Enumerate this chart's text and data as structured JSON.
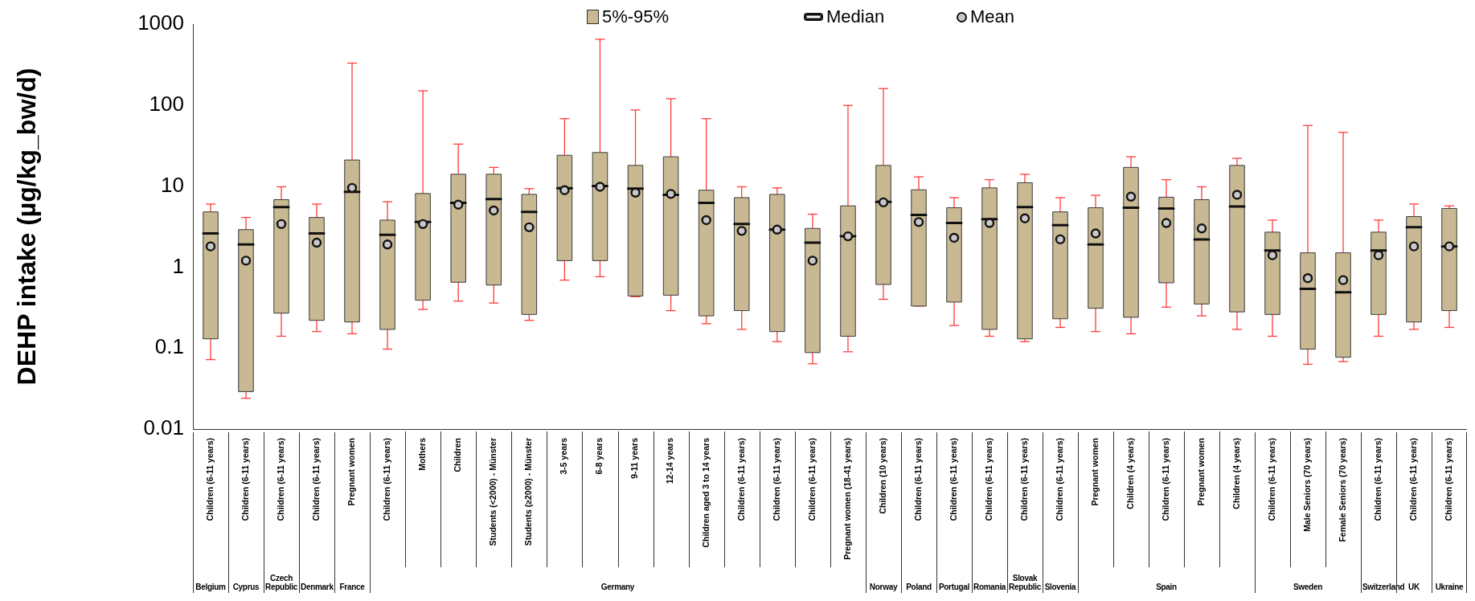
{
  "chart_data": [
    {
      "type": "box",
      "title": "Belgium",
      "ylabel": "DEHP intake (µg/kg_bw/d)",
      "color": "#c8b993",
      "log": true,
      "ylim": [
        0.01,
        1000
      ],
      "yticks": [
        0.01,
        0.1,
        1,
        10,
        100,
        1000
      ],
      "categories": [
        "Children (6-11 years)"
      ],
      "boxes": [
        {
          "low": 0.072,
          "q1": 0.13,
          "median": 2.6,
          "q3": 4.8,
          "high": 6.0,
          "mean": 1.8
        }
      ]
    },
    {
      "type": "box",
      "title": "Cyprus",
      "color": "#c8b993",
      "log": true,
      "ylim": [
        0.01,
        1000
      ],
      "yticks": [
        0.01,
        0.1,
        1,
        10,
        100,
        1000
      ],
      "tick_labels": "x",
      "categories": [
        "Children (6-11 years)"
      ],
      "boxes": [
        {
          "low": 0.024,
          "q1": 0.029,
          "median": 1.9,
          "q3": 2.9,
          "high": 4.1,
          "mean": 1.2
        }
      ]
    },
    {
      "type": "box",
      "title": "Czech Republic",
      "color": "#c8b993",
      "log": true,
      "ylim": [
        0.01,
        1000
      ],
      "yticks": [
        0.01,
        0.1,
        1,
        10,
        100,
        1000
      ],
      "tick_labels": "x",
      "categories": [
        "Children (6-11 years)"
      ],
      "boxes": [
        {
          "low": 0.14,
          "q1": 0.27,
          "median": 5.5,
          "q3": 6.8,
          "high": 9.8,
          "mean": 3.4
        }
      ]
    },
    {
      "type": "box",
      "title": "Denmark",
      "color": "#c8b993",
      "log": true,
      "ylim": [
        0.01,
        1000
      ],
      "yticks": [
        0.01,
        0.1,
        1,
        10,
        100,
        1000
      ],
      "tick_labels": "x",
      "categories": [
        "Children (6-11 years)"
      ],
      "boxes": [
        {
          "low": 0.16,
          "q1": 0.22,
          "median": 2.6,
          "q3": 4.1,
          "high": 6.0,
          "mean": 2.0
        }
      ]
    },
    {
      "type": "box",
      "title": "France",
      "color": "#c8b993",
      "log": true,
      "ylim": [
        0.01,
        1000
      ],
      "yticks": [
        0.01,
        0.1,
        1,
        10,
        100,
        1000
      ],
      "tick_labels": "x",
      "categories": [
        "Pregnant women"
      ],
      "boxes": [
        {
          "low": 0.15,
          "q1": 0.21,
          "median": 8.5,
          "q3": 21,
          "high": 330,
          "mean": 9.5
        }
      ]
    },
    {
      "type": "box",
      "title": "Germany",
      "color": "#c8b993",
      "log": true,
      "ylim": [
        0.01,
        1000
      ],
      "yticks": [
        0.01,
        0.1,
        1,
        10,
        100,
        1000
      ],
      "tick_labels": "x",
      "annotations": [
        "5%-95%",
        "Median",
        "Mean"
      ],
      "categories": [
        "Children (6-11 years)",
        "Mothers",
        "Children",
        "Students (<2000) - Münster",
        "Students (≥2000) - Münster",
        "3-5 years",
        "6-8 years",
        "9-11 years",
        "12-14 years",
        "Children aged 3 to 14 years",
        "Children (6-11 years)",
        "Children (6-11 years)",
        "Children (6-11 years)",
        "Pregnant women (18-41 years)"
      ],
      "boxes": [
        {
          "low": 0.097,
          "q1": 0.17,
          "median": 2.5,
          "q3": 3.8,
          "high": 6.4,
          "mean": 1.9
        },
        {
          "low": 0.3,
          "q1": 0.39,
          "median": 3.6,
          "q3": 8.1,
          "high": 150,
          "mean": 3.4
        },
        {
          "low": 0.38,
          "q1": 0.65,
          "median": 6.2,
          "q3": 14,
          "high": 33,
          "mean": 5.9
        },
        {
          "low": 0.36,
          "q1": 0.6,
          "median": 6.9,
          "q3": 14,
          "high": 17,
          "mean": 5.0
        },
        {
          "low": 0.22,
          "q1": 0.26,
          "median": 4.8,
          "q3": 7.9,
          "high": 9.3,
          "mean": 3.1
        },
        {
          "low": 0.69,
          "q1": 1.2,
          "median": 9.4,
          "q3": 24,
          "high": 68,
          "mean": 8.9
        },
        {
          "low": 0.76,
          "q1": 1.2,
          "median": 10,
          "q3": 26,
          "high": 650,
          "mean": 9.8
        },
        {
          "low": 0.43,
          "q1": 0.44,
          "median": 9.3,
          "q3": 18,
          "high": 87,
          "mean": 8.3
        },
        {
          "low": 0.29,
          "q1": 0.45,
          "median": 7.8,
          "q3": 23,
          "high": 120,
          "mean": 8.0
        },
        {
          "low": 0.2,
          "q1": 0.25,
          "median": 6.2,
          "q3": 8.9,
          "high": 68,
          "mean": 3.8
        },
        {
          "low": 0.17,
          "q1": 0.29,
          "median": 3.4,
          "q3": 7.2,
          "high": 9.8,
          "mean": 2.8
        },
        {
          "low": 0.12,
          "q1": 0.16,
          "median": 2.9,
          "q3": 7.9,
          "high": 9.5,
          "mean": 2.9
        },
        {
          "low": 0.064,
          "q1": 0.088,
          "median": 2.0,
          "q3": 3.0,
          "high": 4.5,
          "mean": 1.2
        },
        {
          "low": 0.09,
          "q1": 0.14,
          "median": 2.4,
          "q3": 5.7,
          "high": 99,
          "mean": 2.4
        }
      ]
    },
    {
      "type": "box",
      "title": "Norway",
      "color": "#c8b993",
      "log": true,
      "ylim": [
        0.01,
        1000
      ],
      "yticks": [
        0.01,
        0.1,
        1,
        10,
        100,
        1000
      ],
      "tick_labels": "x",
      "categories": [
        "Children (10 years)"
      ],
      "boxes": [
        {
          "low": 0.4,
          "q1": 0.61,
          "median": 6.4,
          "q3": 18,
          "high": 160,
          "mean": 6.3
        }
      ]
    },
    {
      "type": "box",
      "title": "Poland",
      "color": "#c8b993",
      "log": true,
      "ylim": [
        0.01,
        1000
      ],
      "yticks": [
        0.01,
        0.1,
        1,
        10,
        100,
        1000
      ],
      "tick_labels": "x",
      "categories": [
        "Children (6-11 years)"
      ],
      "boxes": [
        {
          "low": 0.33,
          "q1": 0.33,
          "median": 4.4,
          "q3": 9.0,
          "high": 13,
          "mean": 3.6
        }
      ]
    },
    {
      "type": "box",
      "title": "Portugal",
      "color": "#c8b993",
      "log": true,
      "ylim": [
        0.01,
        1000
      ],
      "yticks": [
        0.01,
        0.1,
        1,
        10,
        100,
        1000
      ],
      "tick_labels": "x",
      "categories": [
        "Children (6-11 years)"
      ],
      "boxes": [
        {
          "low": 0.19,
          "q1": 0.37,
          "median": 3.5,
          "q3": 5.4,
          "high": 7.2,
          "mean": 2.3
        }
      ]
    },
    {
      "type": "box",
      "title": "Romania",
      "color": "#c8b993",
      "log": true,
      "ylim": [
        0.01,
        1000
      ],
      "yticks": [
        0.01,
        0.1,
        1,
        10,
        100,
        1000
      ],
      "tick_labels": "x",
      "categories": [
        "Children (6-11 years)"
      ],
      "boxes": [
        {
          "low": 0.14,
          "q1": 0.17,
          "median": 3.9,
          "q3": 9.5,
          "high": 12,
          "mean": 3.5
        }
      ]
    },
    {
      "type": "box",
      "title": "Slovak Republic",
      "color": "#c8b993",
      "log": true,
      "ylim": [
        0.01,
        1000
      ],
      "yticks": [
        0.01,
        0.1,
        1,
        10,
        100,
        1000
      ],
      "tick_labels": "x",
      "categories": [
        "Children (6-11 years)"
      ],
      "boxes": [
        {
          "low": 0.12,
          "q1": 0.13,
          "median": 5.5,
          "q3": 11,
          "high": 14,
          "mean": 4.0
        }
      ]
    },
    {
      "type": "box",
      "title": "Slovenia",
      "color": "#c8b993",
      "log": true,
      "ylim": [
        0.01,
        1000
      ],
      "yticks": [
        0.01,
        0.1,
        1,
        10,
        100,
        1000
      ],
      "tick_labels": "x",
      "categories": [
        "Children (6-11 years)"
      ],
      "boxes": [
        {
          "low": 0.18,
          "q1": 0.23,
          "median": 3.3,
          "q3": 4.8,
          "high": 7.2,
          "mean": 2.2
        }
      ]
    },
    {
      "type": "box",
      "title": "Spain",
      "color": "#c8b993",
      "log": true,
      "ylim": [
        0.01,
        1000
      ],
      "yticks": [
        0.01,
        0.1,
        1,
        10,
        100,
        1000
      ],
      "tick_labels": "x",
      "categories": [
        "Pregnant women",
        "Children (4 years)",
        "Children (6-11 years)",
        "Pregnant women",
        "Children (4 years)"
      ],
      "boxes": [
        {
          "low": 0.16,
          "q1": 0.31,
          "median": 1.9,
          "q3": 5.4,
          "high": 7.7,
          "mean": 2.6
        },
        {
          "low": 0.15,
          "q1": 0.24,
          "median": 5.4,
          "q3": 17,
          "high": 23,
          "mean": 7.4
        },
        {
          "low": 0.32,
          "q1": 0.64,
          "median": 5.3,
          "q3": 7.3,
          "high": 12,
          "mean": 3.5
        },
        {
          "low": 0.25,
          "q1": 0.35,
          "median": 2.2,
          "q3": 6.8,
          "high": 9.8,
          "mean": 3.0
        },
        {
          "low": 0.17,
          "q1": 0.28,
          "median": 5.6,
          "q3": 18,
          "high": 22,
          "mean": 7.8
        }
      ]
    },
    {
      "type": "box",
      "title": "Sweden",
      "color": "#c8b993",
      "log": true,
      "ylim": [
        0.01,
        1000
      ],
      "yticks": [
        0.01,
        0.1,
        1,
        10,
        100,
        1000
      ],
      "tick_labels": "x",
      "categories": [
        "Children (6-11 years)",
        "Male Seniors (70 years)",
        "Female Seniors (70 years)"
      ],
      "boxes": [
        {
          "low": 0.14,
          "q1": 0.26,
          "median": 1.6,
          "q3": 2.7,
          "high": 3.8,
          "mean": 1.4
        },
        {
          "low": 0.063,
          "q1": 0.097,
          "median": 0.54,
          "q3": 1.5,
          "high": 56,
          "mean": 0.73
        },
        {
          "low": 0.068,
          "q1": 0.077,
          "median": 0.49,
          "q3": 1.5,
          "high": 46,
          "mean": 0.69
        }
      ]
    },
    {
      "type": "box",
      "title": "Switzerland",
      "color": "#c8b993",
      "log": true,
      "ylim": [
        0.01,
        1000
      ],
      "yticks": [
        0.01,
        0.1,
        1,
        10,
        100,
        1000
      ],
      "tick_labels": "x",
      "categories": [
        "Children (6-11 years)"
      ],
      "boxes": [
        {
          "low": 0.14,
          "q1": 0.26,
          "median": 1.6,
          "q3": 2.7,
          "high": 3.8,
          "mean": 1.4
        }
      ]
    },
    {
      "type": "box",
      "title": "UK",
      "color": "#c8b993",
      "log": true,
      "ylim": [
        0.01,
        1000
      ],
      "yticks": [
        0.01,
        0.1,
        1,
        10,
        100,
        1000
      ],
      "tick_labels": "x",
      "categories": [
        "Children (6-11 years)"
      ],
      "boxes": [
        {
          "low": 0.17,
          "q1": 0.21,
          "median": 3.1,
          "q3": 4.2,
          "high": 6.0,
          "mean": 1.8
        }
      ]
    },
    {
      "type": "box",
      "title": "Ukraine",
      "color": "#c8b993",
      "log": true,
      "ylim": [
        0.01,
        1000
      ],
      "yticks": [
        0.01,
        0.1,
        1,
        10,
        100,
        1000
      ],
      "tick_labels": "x",
      "categories": [
        "Children (6-11 years)"
      ],
      "boxes": [
        {
          "low": 0.18,
          "q1": 0.29,
          "median": 1.8,
          "q3": 5.3,
          "high": 5.7,
          "mean": 1.8
        }
      ]
    }
  ]
}
